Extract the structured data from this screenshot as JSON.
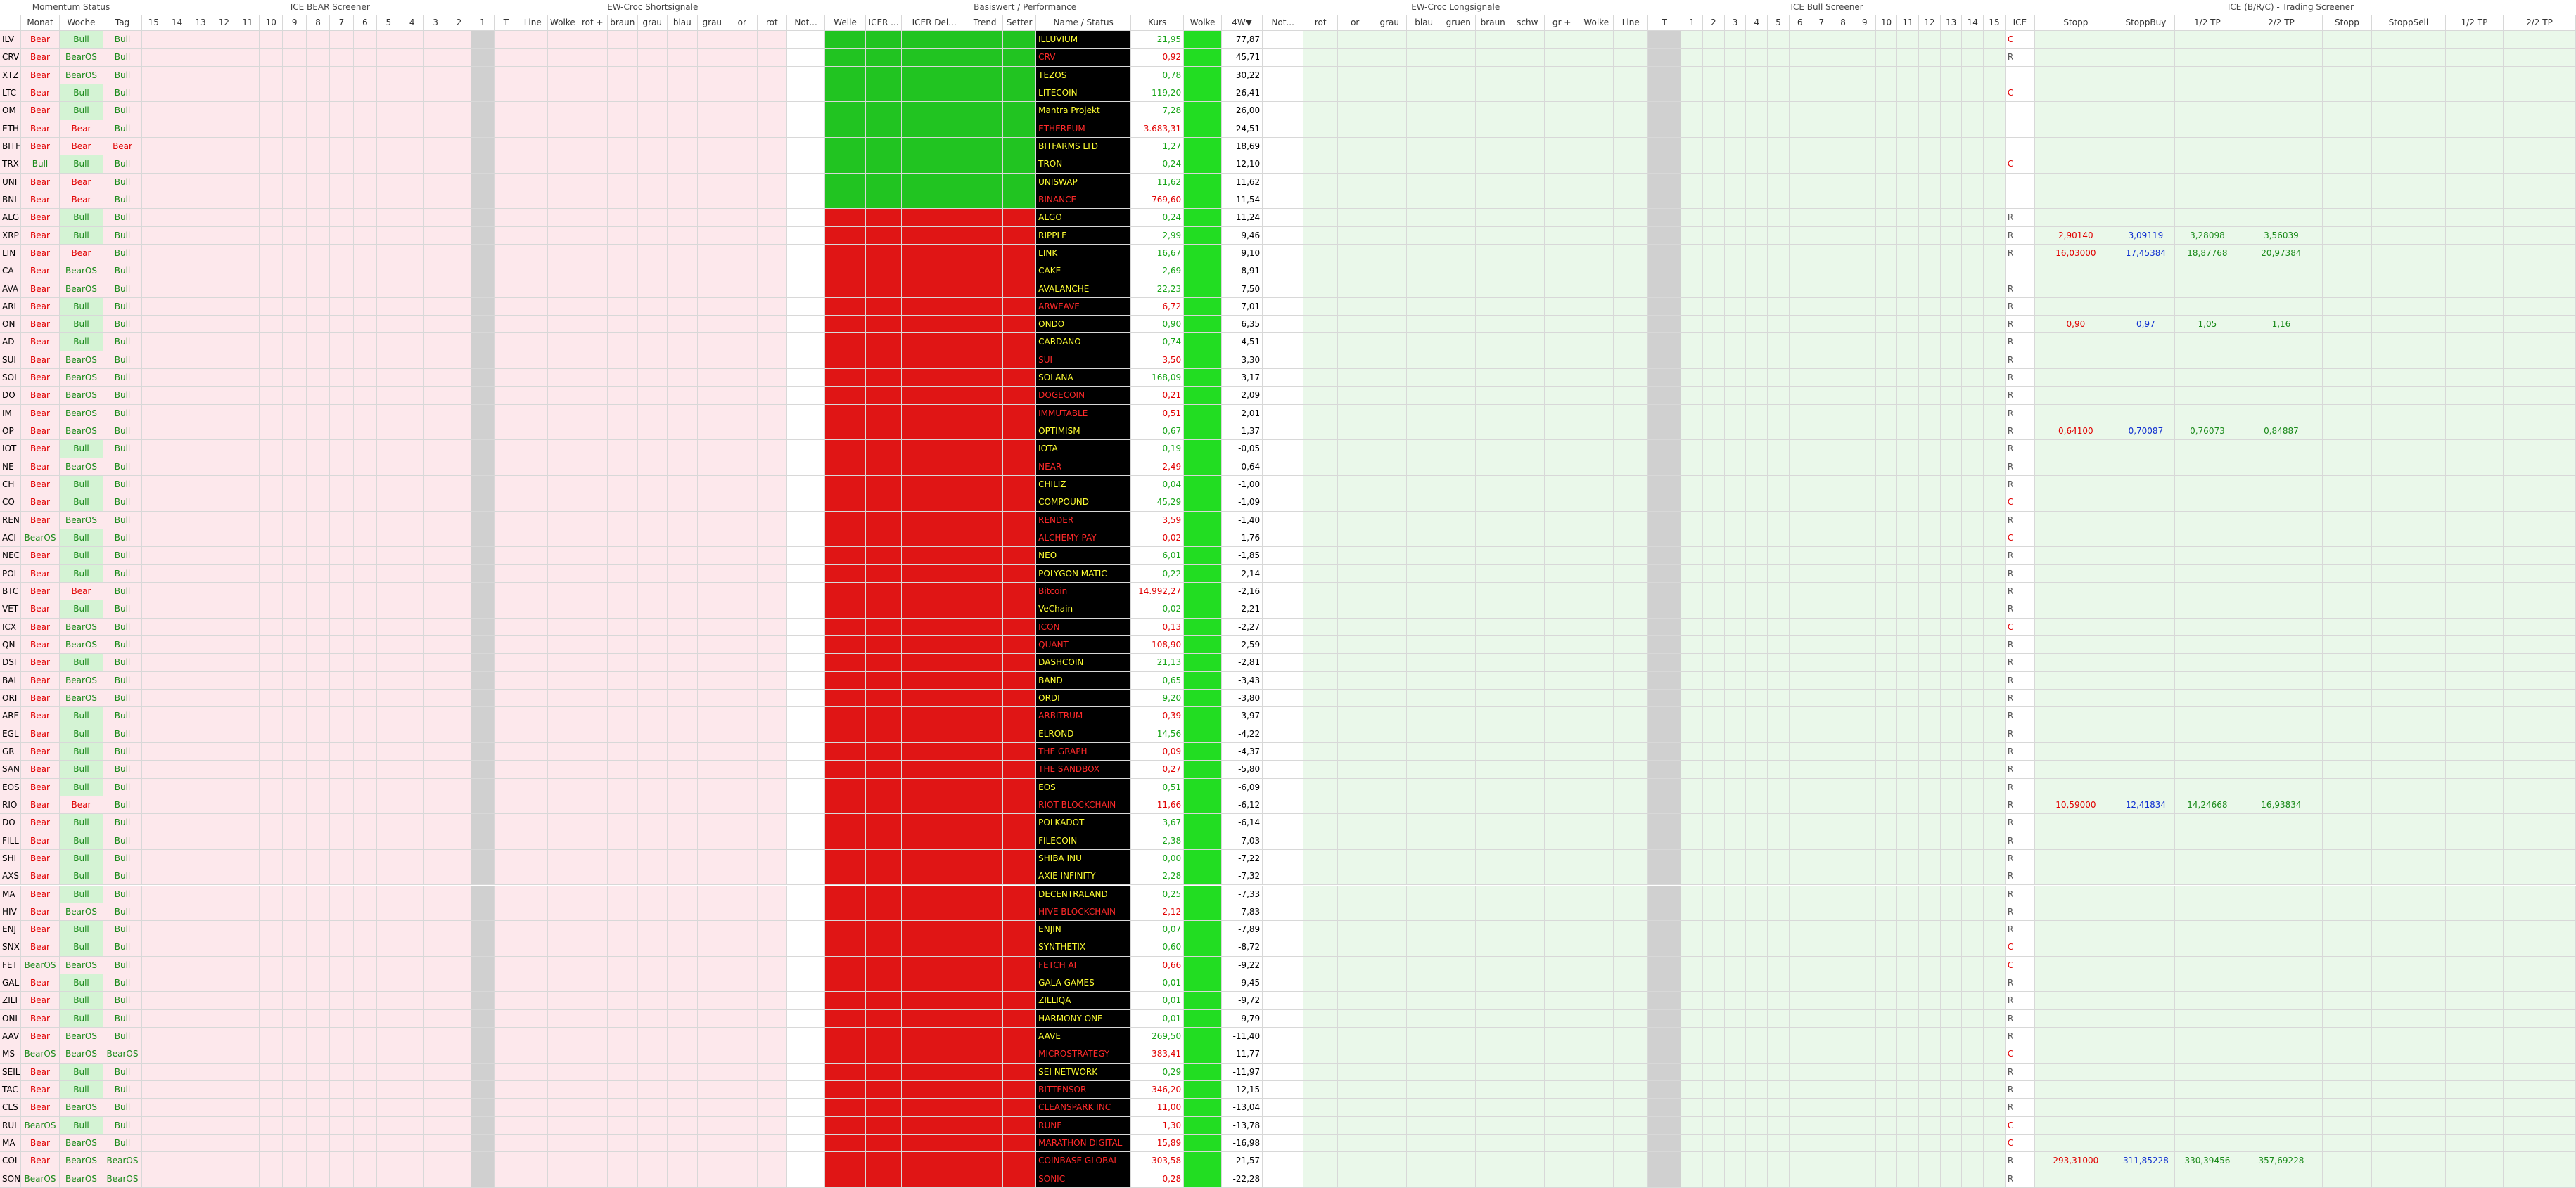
{
  "groups": [
    "Momentum Status",
    "ICE BEAR Screener",
    "EW-Croc Shortsignale",
    "Basiswert / Performance",
    "EW-Croc Longsignale",
    "ICE Bull Screener",
    "ICE (B/R/C) - Trading Screener"
  ],
  "columns": [
    "Monat",
    "Woche",
    "Tag",
    "15",
    "14",
    "13",
    "12",
    "11",
    "10",
    "9",
    "8",
    "7",
    "6",
    "5",
    "4",
    "3",
    "2",
    "1",
    "T",
    "Line",
    "Wolke",
    "rot +",
    "braun",
    "grau",
    "blau",
    "grau",
    "or",
    "rot",
    "Not...",
    "Welle",
    "ICER ...",
    "ICER Del...",
    "Trend",
    "Setter",
    "Name / Status",
    "Kurs",
    "Wolke",
    "4W▼",
    "Not...",
    "rot",
    "or",
    "grau",
    "blau",
    "gruen",
    "braun",
    "schw",
    "gr +",
    "Wolke",
    "Line",
    "T",
    "1",
    "2",
    "3",
    "4",
    "5",
    "6",
    "7",
    "8",
    "9",
    "10",
    "11",
    "12",
    "13",
    "14",
    "15",
    "ICE",
    "Stopp",
    "StoppBuy",
    "1/2 TP",
    "2/2 TP",
    "Stopp",
    "StoppSell",
    "1/2 TP",
    "2/2 TP"
  ],
  "name_colors": {
    "up": "#ffff33",
    "down": "#ff2a2a"
  },
  "rows": [
    {
      "t": "ILV",
      "m": "Bear",
      "w": "Bull",
      "d": "Bull",
      "name": "ILLUVIUM",
      "kurs": "21,95",
      "w4": "77,87",
      "ice": "C",
      "color": "up"
    },
    {
      "t": "CRV",
      "m": "Bear",
      "w": "BearOS",
      "d": "Bull",
      "name": "CRV",
      "kurs": "0,92",
      "w4": "45,71",
      "ice": "R",
      "color": "down"
    },
    {
      "t": "XTZ",
      "m": "Bear",
      "w": "BearOS",
      "d": "Bull",
      "name": "TEZOS",
      "kurs": "0,78",
      "w4": "30,22",
      "ice": "",
      "color": "up"
    },
    {
      "t": "LTC",
      "m": "Bear",
      "w": "Bull",
      "d": "Bull",
      "name": "LITECOIN",
      "kurs": "119,20",
      "w4": "26,41",
      "ice": "C",
      "color": "up"
    },
    {
      "t": "OM",
      "m": "Bear",
      "w": "Bull",
      "d": "Bull",
      "name": "Mantra Projekt",
      "kurs": "7,28",
      "w4": "26,00",
      "ice": "",
      "color": "up"
    },
    {
      "t": "ETH",
      "m": "Bear",
      "w": "Bear",
      "d": "Bull",
      "name": "ETHEREUM",
      "kurs": "3.683,31",
      "w4": "24,51",
      "ice": "",
      "color": "down"
    },
    {
      "t": "BITF",
      "m": "Bear",
      "w": "Bear",
      "d": "Bear",
      "name": "BITFARMS LTD",
      "kurs": "1,27",
      "w4": "18,69",
      "ice": "",
      "color": "up"
    },
    {
      "t": "TRX",
      "m": "Bull",
      "w": "Bull",
      "d": "Bull",
      "name": "TRON",
      "kurs": "0,24",
      "w4": "12,10",
      "ice": "C",
      "color": "up"
    },
    {
      "t": "UNI",
      "m": "Bear",
      "w": "Bear",
      "d": "Bull",
      "name": "UNISWAP",
      "kurs": "11,62",
      "w4": "11,62",
      "ice": "",
      "color": "up"
    },
    {
      "t": "BNI",
      "m": "Bear",
      "w": "Bear",
      "d": "Bull",
      "name": "BINANCE",
      "kurs": "769,60",
      "w4": "11,54",
      "ice": "",
      "color": "down"
    },
    {
      "t": "ALG",
      "m": "Bear",
      "w": "Bull",
      "d": "Bull",
      "name": "ALGO",
      "kurs": "0,24",
      "w4": "11,24",
      "ice": "R",
      "color": "up"
    },
    {
      "t": "XRP",
      "m": "Bear",
      "w": "Bull",
      "d": "Bull",
      "name": "RIPPLE",
      "kurs": "2,99",
      "w4": "9,46",
      "ice": "R",
      "color": "up",
      "trade": [
        "2,90140",
        "3,09119",
        "3,28098",
        "3,56039"
      ]
    },
    {
      "t": "LIN",
      "m": "Bear",
      "w": "Bear",
      "d": "Bull",
      "name": "LINK",
      "kurs": "16,67",
      "w4": "9,10",
      "ice": "R",
      "color": "up",
      "trade": [
        "16,03000",
        "17,45384",
        "18,87768",
        "20,97384"
      ]
    },
    {
      "t": "CA",
      "m": "Bear",
      "w": "BearOS",
      "d": "Bull",
      "name": "CAKE",
      "kurs": "2,69",
      "w4": "8,91",
      "ice": "",
      "color": "up"
    },
    {
      "t": "AVA",
      "m": "Bear",
      "w": "BearOS",
      "d": "Bull",
      "name": "AVALANCHE",
      "kurs": "22,23",
      "w4": "7,50",
      "ice": "R",
      "color": "up"
    },
    {
      "t": "ARL",
      "m": "Bear",
      "w": "Bull",
      "d": "Bull",
      "name": "ARWEAVE",
      "kurs": "6,72",
      "w4": "7,01",
      "ice": "R",
      "color": "down"
    },
    {
      "t": "ON",
      "m": "Bear",
      "w": "Bull",
      "d": "Bull",
      "name": "ONDO",
      "kurs": "0,90",
      "w4": "6,35",
      "ice": "R",
      "color": "up",
      "trade": [
        "0,90",
        "0,97",
        "1,05",
        "1,16"
      ]
    },
    {
      "t": "AD",
      "m": "Bear",
      "w": "Bull",
      "d": "Bull",
      "name": "CARDANO",
      "kurs": "0,74",
      "w4": "4,51",
      "ice": "R",
      "color": "up"
    },
    {
      "t": "SUI",
      "m": "Bear",
      "w": "BearOS",
      "d": "Bull",
      "name": "SUI",
      "kurs": "3,50",
      "w4": "3,30",
      "ice": "R",
      "color": "down"
    },
    {
      "t": "SOL",
      "m": "Bear",
      "w": "BearOS",
      "d": "Bull",
      "name": "SOLANA",
      "kurs": "168,09",
      "w4": "3,17",
      "ice": "R",
      "color": "up"
    },
    {
      "t": "DO",
      "m": "Bear",
      "w": "BearOS",
      "d": "Bull",
      "name": "DOGECOIN",
      "kurs": "0,21",
      "w4": "2,09",
      "ice": "R",
      "color": "down"
    },
    {
      "t": "IM",
      "m": "Bear",
      "w": "BearOS",
      "d": "Bull",
      "name": "IMMUTABLE",
      "kurs": "0,51",
      "w4": "2,01",
      "ice": "R",
      "color": "down"
    },
    {
      "t": "OP",
      "m": "Bear",
      "w": "BearOS",
      "d": "Bull",
      "name": "OPTIMISM",
      "kurs": "0,67",
      "w4": "1,37",
      "ice": "R",
      "color": "up",
      "trade": [
        "0,64100",
        "0,70087",
        "0,76073",
        "0,84887"
      ]
    },
    {
      "t": "IOT",
      "m": "Bear",
      "w": "Bull",
      "d": "Bull",
      "name": "IOTA",
      "kurs": "0,19",
      "w4": "-0,05",
      "ice": "R",
      "color": "up"
    },
    {
      "t": "NE",
      "m": "Bear",
      "w": "BearOS",
      "d": "Bull",
      "name": "NEAR",
      "kurs": "2,49",
      "w4": "-0,64",
      "ice": "R",
      "color": "down"
    },
    {
      "t": "CH",
      "m": "Bear",
      "w": "Bull",
      "d": "Bull",
      "name": "CHILIZ",
      "kurs": "0,04",
      "w4": "-1,00",
      "ice": "R",
      "color": "up"
    },
    {
      "t": "CO",
      "m": "Bear",
      "w": "Bull",
      "d": "Bull",
      "name": "COMPOUND",
      "kurs": "45,29",
      "w4": "-1,09",
      "ice": "C",
      "color": "up"
    },
    {
      "t": "REN",
      "m": "Bear",
      "w": "BearOS",
      "d": "Bull",
      "name": "RENDER",
      "kurs": "3,59",
      "w4": "-1,40",
      "ice": "R",
      "color": "down"
    },
    {
      "t": "ACI",
      "m": "BearOS",
      "w": "Bull",
      "d": "Bull",
      "name": "ALCHEMY PAY",
      "kurs": "0,02",
      "w4": "-1,76",
      "ice": "C",
      "color": "down"
    },
    {
      "t": "NEC",
      "m": "Bear",
      "w": "Bull",
      "d": "Bull",
      "name": "NEO",
      "kurs": "6,01",
      "w4": "-1,85",
      "ice": "R",
      "color": "up"
    },
    {
      "t": "POL",
      "m": "Bear",
      "w": "Bull",
      "d": "Bull",
      "name": "POLYGON MATIC",
      "kurs": "0,22",
      "w4": "-2,14",
      "ice": "R",
      "color": "up"
    },
    {
      "t": "BTC",
      "m": "Bear",
      "w": "Bear",
      "d": "Bull",
      "name": "Bitcoin",
      "kurs": "14.992,27",
      "w4": "-2,16",
      "ice": "R",
      "color": "down"
    },
    {
      "t": "VET",
      "m": "Bear",
      "w": "Bull",
      "d": "Bull",
      "name": "VeChain",
      "kurs": "0,02",
      "w4": "-2,21",
      "ice": "R",
      "color": "up"
    },
    {
      "t": "ICX",
      "m": "Bear",
      "w": "BearOS",
      "d": "Bull",
      "name": "ICON",
      "kurs": "0,13",
      "w4": "-2,27",
      "ice": "C",
      "color": "down"
    },
    {
      "t": "QN",
      "m": "Bear",
      "w": "BearOS",
      "d": "Bull",
      "name": "QUANT",
      "kurs": "108,90",
      "w4": "-2,59",
      "ice": "R",
      "color": "down"
    },
    {
      "t": "DSI",
      "m": "Bear",
      "w": "Bull",
      "d": "Bull",
      "name": "DASHCOIN",
      "kurs": "21,13",
      "w4": "-2,81",
      "ice": "R",
      "color": "up"
    },
    {
      "t": "BAI",
      "m": "Bear",
      "w": "BearOS",
      "d": "Bull",
      "name": "BAND",
      "kurs": "0,65",
      "w4": "-3,43",
      "ice": "R",
      "color": "up"
    },
    {
      "t": "ORI",
      "m": "Bear",
      "w": "BearOS",
      "d": "Bull",
      "name": "ORDI",
      "kurs": "9,20",
      "w4": "-3,80",
      "ice": "R",
      "color": "up"
    },
    {
      "t": "ARE",
      "m": "Bear",
      "w": "Bull",
      "d": "Bull",
      "name": "ARBITRUM",
      "kurs": "0,39",
      "w4": "-3,97",
      "ice": "R",
      "color": "down"
    },
    {
      "t": "EGL",
      "m": "Bear",
      "w": "Bull",
      "d": "Bull",
      "name": "ELROND",
      "kurs": "14,56",
      "w4": "-4,22",
      "ice": "R",
      "color": "up"
    },
    {
      "t": "GR",
      "m": "Bear",
      "w": "Bull",
      "d": "Bull",
      "name": "THE GRAPH",
      "kurs": "0,09",
      "w4": "-4,37",
      "ice": "R",
      "color": "down"
    },
    {
      "t": "SAN",
      "m": "Bear",
      "w": "Bull",
      "d": "Bull",
      "name": "THE SANDBOX",
      "kurs": "0,27",
      "w4": "-5,80",
      "ice": "R",
      "color": "down"
    },
    {
      "t": "EOS",
      "m": "Bear",
      "w": "Bull",
      "d": "Bull",
      "name": "EOS",
      "kurs": "0,51",
      "w4": "-6,09",
      "ice": "R",
      "color": "up"
    },
    {
      "t": "RIO",
      "m": "Bear",
      "w": "Bear",
      "d": "Bull",
      "name": "RIOT BLOCKCHAIN",
      "kurs": "11,66",
      "w4": "-6,12",
      "ice": "R",
      "color": "down",
      "trade": [
        "10,59000",
        "12,41834",
        "14,24668",
        "16,93834"
      ]
    },
    {
      "t": "DO",
      "m": "Bear",
      "w": "Bull",
      "d": "Bull",
      "name": "POLKADOT",
      "kurs": "3,67",
      "w4": "-6,14",
      "ice": "R",
      "color": "up"
    },
    {
      "t": "FILL",
      "m": "Bear",
      "w": "Bull",
      "d": "Bull",
      "name": "FILECOIN",
      "kurs": "2,38",
      "w4": "-7,03",
      "ice": "R",
      "color": "up"
    },
    {
      "t": "SHI",
      "m": "Bear",
      "w": "Bull",
      "d": "Bull",
      "name": "SHIBA INU",
      "kurs": "0,00",
      "w4": "-7,22",
      "ice": "R",
      "color": "up"
    },
    {
      "t": "AXS",
      "m": "Bear",
      "w": "Bull",
      "d": "Bull",
      "name": "AXIE INFINITY",
      "kurs": "2,28",
      "w4": "-7,32",
      "ice": "R",
      "color": "up"
    },
    {
      "t": "MA",
      "m": "Bear",
      "w": "Bull",
      "d": "Bull",
      "name": "DECENTRALAND",
      "kurs": "0,25",
      "w4": "-7,33",
      "ice": "R",
      "color": "up"
    },
    {
      "t": "HIV",
      "m": "Bear",
      "w": "BearOS",
      "d": "Bull",
      "name": "HIVE BLOCKCHAIN",
      "kurs": "2,12",
      "w4": "-7,83",
      "ice": "R",
      "color": "down"
    },
    {
      "t": "ENJ",
      "m": "Bear",
      "w": "Bull",
      "d": "Bull",
      "name": "ENJIN",
      "kurs": "0,07",
      "w4": "-7,89",
      "ice": "R",
      "color": "up"
    },
    {
      "t": "SNX",
      "m": "Bear",
      "w": "Bull",
      "d": "Bull",
      "name": "SYNTHETIX",
      "kurs": "0,60",
      "w4": "-8,72",
      "ice": "C",
      "color": "up"
    },
    {
      "t": "FET",
      "m": "BearOS",
      "w": "BearOS",
      "d": "Bull",
      "name": "FETCH AI",
      "kurs": "0,66",
      "w4": "-9,22",
      "ice": "C",
      "color": "down"
    },
    {
      "t": "GAL",
      "m": "Bear",
      "w": "Bull",
      "d": "Bull",
      "name": "GALA GAMES",
      "kurs": "0,01",
      "w4": "-9,45",
      "ice": "R",
      "color": "up"
    },
    {
      "t": "ZILI",
      "m": "Bear",
      "w": "Bull",
      "d": "Bull",
      "name": "ZILLIQA",
      "kurs": "0,01",
      "w4": "-9,72",
      "ice": "R",
      "color": "up"
    },
    {
      "t": "ONI",
      "m": "Bear",
      "w": "Bull",
      "d": "Bull",
      "name": "HARMONY ONE",
      "kurs": "0,01",
      "w4": "-9,79",
      "ice": "R",
      "color": "up"
    },
    {
      "t": "AAV",
      "m": "Bear",
      "w": "BearOS",
      "d": "Bull",
      "name": "AAVE",
      "kurs": "269,50",
      "w4": "-11,40",
      "ice": "R",
      "color": "up"
    },
    {
      "t": "MS",
      "m": "BearOS",
      "w": "BearOS",
      "d": "BearOS",
      "name": "MICROSTRATEGY",
      "kurs": "383,41",
      "w4": "-11,77",
      "ice": "C",
      "color": "down"
    },
    {
      "t": "SEIL",
      "m": "Bear",
      "w": "Bull",
      "d": "Bull",
      "name": "SEI NETWORK",
      "kurs": "0,29",
      "w4": "-11,97",
      "ice": "R",
      "color": "up"
    },
    {
      "t": "TAC",
      "m": "Bear",
      "w": "Bull",
      "d": "Bull",
      "name": "BITTENSOR",
      "kurs": "346,20",
      "w4": "-12,15",
      "ice": "R",
      "color": "down"
    },
    {
      "t": "CLS",
      "m": "Bear",
      "w": "BearOS",
      "d": "Bull",
      "name": "CLEANSPARK INC",
      "kurs": "11,00",
      "w4": "-13,04",
      "ice": "R",
      "color": "down"
    },
    {
      "t": "RUI",
      "m": "BearOS",
      "w": "Bull",
      "d": "Bull",
      "name": "RUNE",
      "kurs": "1,30",
      "w4": "-13,78",
      "ice": "C",
      "color": "down"
    },
    {
      "t": "MA",
      "m": "Bear",
      "w": "BearOS",
      "d": "Bull",
      "name": "MARATHON DIGITAL",
      "kurs": "15,89",
      "w4": "-16,98",
      "ice": "C",
      "color": "down"
    },
    {
      "t": "COI",
      "m": "Bear",
      "w": "BearOS",
      "d": "BearOS",
      "name": "COINBASE GLOBAL",
      "kurs": "303,58",
      "w4": "-21,57",
      "ice": "R",
      "color": "down",
      "trade": [
        "293,31000",
        "311,85228",
        "330,39456",
        "357,69228"
      ]
    },
    {
      "t": "SON",
      "m": "BearOS",
      "w": "BearOS",
      "d": "BearOS",
      "name": "SONIC",
      "kurs": "0,28",
      "w4": "-22,28",
      "ice": "R",
      "color": "down"
    }
  ]
}
